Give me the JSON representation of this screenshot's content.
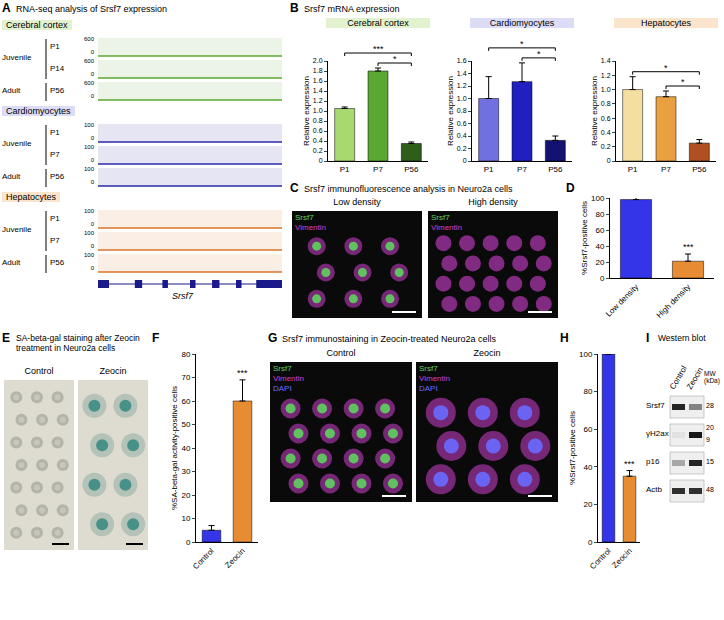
{
  "panels": {
    "A": {
      "letter": "A",
      "title": "RNA-seq analysis of Srsf7 expression",
      "gene": "Srsf7",
      "tissues": [
        {
          "name": "Cerebral cortex",
          "color": "#5aa832",
          "scale": [
            0,
            600
          ],
          "groups": [
            {
              "label": "Juvenile",
              "tracks": [
                "P1",
                "P14"
              ]
            },
            {
              "label": "Adult",
              "tracks": [
                "P56"
              ]
            }
          ]
        },
        {
          "name": "Cardiomyocytes",
          "color": "#2a2aa8",
          "scale": [
            0,
            100
          ],
          "groups": [
            {
              "label": "Juvenile",
              "tracks": [
                "P1",
                "P7"
              ]
            },
            {
              "label": "Adult",
              "tracks": [
                "P56"
              ]
            }
          ]
        },
        {
          "name": "Hepatocytes",
          "color": "#d8742a",
          "scale": [
            0,
            100
          ],
          "groups": [
            {
              "label": "Juvenile",
              "tracks": [
                "P1",
                "P7"
              ]
            },
            {
              "label": "Adult",
              "tracks": [
                "P56"
              ]
            }
          ]
        }
      ]
    },
    "B": {
      "letter": "B",
      "title": "Srsf7 mRNA expression"
    },
    "C": {
      "letter": "C",
      "title": "Srsf7 immunofluorescence analysis in Neuro2a cells",
      "images": [
        "Low density",
        "High density"
      ],
      "stains": [
        {
          "name": "Srsf7",
          "color": "#5fd35f"
        },
        {
          "name": "Vimentin",
          "color": "#d040d0"
        }
      ]
    },
    "E": {
      "letter": "E",
      "title": "SA-beta-gal staining after Zeocin treatment in Neuro2a cells",
      "images": [
        "Control",
        "Zeocin"
      ]
    },
    "G": {
      "letter": "G",
      "title": "Srsf7 immunostaining in Zeocin-treated Neuro2a cells",
      "images": [
        "Control",
        "Zeocin"
      ],
      "stains": [
        {
          "name": "Srsf7",
          "color": "#5fd35f"
        },
        {
          "name": "Vimentin",
          "color": "#d040d0"
        },
        {
          "name": "DAPI",
          "color": "#6a6aff"
        }
      ]
    },
    "I": {
      "letter": "I",
      "title": "Western blot",
      "lanes": [
        "Control",
        "Zeocin"
      ],
      "mw_label": "MW (kDa)",
      "rows": [
        {
          "name": "Srsf7",
          "mw": [
            28
          ]
        },
        {
          "name": "γH2ax",
          "mw": [
            20,
            9
          ]
        },
        {
          "name": "p16",
          "mw": [
            15
          ]
        },
        {
          "name": "Actb",
          "mw": [
            48
          ]
        }
      ]
    }
  },
  "chart_data": [
    {
      "panel": "B",
      "type": "bar",
      "title": "Cerebral cortex",
      "categories": [
        "P1",
        "P7",
        "P56"
      ],
      "values": [
        1.05,
        1.8,
        0.35
      ],
      "errors": [
        0.03,
        0.06,
        0.03
      ],
      "colors": [
        "#a8d870",
        "#5aa832",
        "#2e5e1a"
      ],
      "y_label": "Relative expression",
      "ylim": [
        0,
        2
      ],
      "yticks": [
        0,
        0.2,
        0.4,
        0.6,
        0.8,
        {
          "value": 1,
          "label": "1.0"
        },
        1.2,
        1.4,
        1.6,
        1.8,
        {
          "value": 2,
          "label": "2.0"
        }
      ],
      "grid": false,
      "significance": [
        {
          "pair": [
            "P7",
            "P56"
          ],
          "label": "*"
        },
        {
          "pair": [
            "P1",
            "P56"
          ],
          "label": "***"
        }
      ]
    },
    {
      "panel": "B",
      "type": "bar",
      "title": "Cardiomyocytes",
      "categories": [
        "P1",
        "P7",
        "P56"
      ],
      "values": [
        1.0,
        1.27,
        0.33
      ],
      "errors": [
        0.35,
        0.3,
        0.07
      ],
      "colors": [
        "#7070e0",
        "#2020c0",
        "#121270"
      ],
      "y_label": "Relative expression",
      "ylim": [
        0,
        1.6
      ],
      "yticks": [
        0,
        0.2,
        0.4,
        0.6,
        0.8,
        {
          "value": 1,
          "label": "1.0"
        },
        1.2,
        1.4,
        1.6
      ],
      "grid": false,
      "significance": [
        {
          "pair": [
            "P7",
            "P56"
          ],
          "label": "*"
        },
        {
          "pair": [
            "P1",
            "P56"
          ],
          "label": "*"
        }
      ]
    },
    {
      "panel": "B",
      "type": "bar",
      "title": "Hepatocytes",
      "categories": [
        "P1",
        "P7",
        "P56"
      ],
      "values": [
        1.0,
        0.9,
        0.25
      ],
      "errors": [
        0.18,
        0.08,
        0.05
      ],
      "colors": [
        "#f5dfa0",
        "#e8a040",
        "#b05020"
      ],
      "y_label": "Relative expression",
      "ylim": [
        0,
        1.4
      ],
      "yticks": [
        0,
        0.2,
        0.4,
        0.6,
        0.8,
        {
          "value": 1,
          "label": "1.0"
        },
        1.2,
        1.4
      ],
      "grid": false,
      "significance": [
        {
          "pair": [
            "P7",
            "P56"
          ],
          "label": "*"
        },
        {
          "pair": [
            "P1",
            "P56"
          ],
          "label": "*"
        }
      ]
    },
    {
      "panel": "D",
      "type": "bar",
      "categories": [
        "Low density",
        "High density"
      ],
      "values": [
        98,
        21
      ],
      "errors": [
        4,
        9
      ],
      "colors": [
        "#3434e8",
        "#e88c34"
      ],
      "y_label": "%Srsf7-positive cells",
      "ylim": [
        0,
        100
      ],
      "yticks": [
        0,
        20,
        40,
        60,
        80,
        100
      ],
      "grid": false,
      "significance": [
        {
          "bar": "High density",
          "label": "***"
        }
      ]
    },
    {
      "panel": "F",
      "type": "bar",
      "categories": [
        "Control",
        "Zeocin"
      ],
      "values": [
        5,
        60
      ],
      "errors": [
        2,
        9
      ],
      "colors": [
        "#3434e8",
        "#e88c34"
      ],
      "y_label": "%SA-beta-gal activity-positive cells",
      "ylim": [
        0,
        80
      ],
      "yticks": [
        0,
        10,
        20,
        30,
        40,
        50,
        60,
        70,
        80
      ],
      "grid": false,
      "significance": [
        {
          "bar": "Zeocin",
          "label": "***"
        }
      ]
    },
    {
      "panel": "H",
      "type": "bar",
      "categories": [
        "Control",
        "Zeocin"
      ],
      "values": [
        100,
        35
      ],
      "errors": [
        0,
        3
      ],
      "colors": [
        "#3434e8",
        "#e88c34"
      ],
      "y_label": "%Srsf7-positive cells",
      "ylim": [
        0,
        100
      ],
      "yticks": [
        0,
        20,
        40,
        60,
        80,
        100
      ],
      "grid": false,
      "significance": [
        {
          "bar": "Zeocin",
          "label": "***"
        }
      ]
    }
  ]
}
